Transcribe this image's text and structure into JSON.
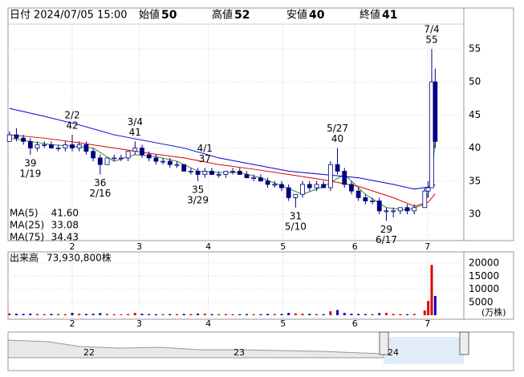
{
  "chart_data": {
    "type": "candlestick",
    "header": {
      "date_label": "日付",
      "date": "2024/07/05 15:00",
      "fields": [
        {
          "label": "始値",
          "value": 50,
          "color": "#000000"
        },
        {
          "label": "高値",
          "value": 52,
          "color": "#e00000"
        },
        {
          "label": "安値",
          "value": 40,
          "color": "#008000"
        },
        {
          "label": "終値",
          "value": 41,
          "color": "#000000"
        }
      ]
    },
    "x": [
      0,
      1,
      2,
      3,
      4,
      5,
      6,
      7,
      8,
      9,
      10,
      11,
      12,
      13,
      14,
      15,
      16,
      17,
      18,
      19,
      20,
      21,
      22,
      23,
      24,
      25,
      26,
      27,
      28,
      29,
      30,
      31,
      32,
      33,
      34,
      35,
      36,
      37,
      38,
      39,
      40,
      41,
      42,
      43,
      44,
      45,
      46,
      47,
      48,
      49,
      50,
      51,
      52,
      53,
      54,
      55,
      56,
      57,
      58,
      59.5,
      60,
      60.5,
      61
    ],
    "open": [
      41,
      42,
      41.5,
      41,
      40,
      40.5,
      40.5,
      40,
      40,
      40.5,
      40,
      40.5,
      39.5,
      38.5,
      37.5,
      38.5,
      38.5,
      38.5,
      39.5,
      40,
      39,
      38.5,
      38,
      38,
      37.5,
      37.5,
      36.5,
      36.5,
      36,
      36.5,
      36,
      36,
      36.5,
      36.5,
      36,
      35.5,
      35.5,
      35,
      34.5,
      34.5,
      34,
      32.5,
      33,
      34.5,
      34,
      34.5,
      34,
      37.5,
      36.5,
      34.5,
      33.5,
      32.5,
      32,
      32,
      30.5,
      30.5,
      30.5,
      31,
      30.5,
      31,
      33.5,
      34,
      50
    ],
    "high": [
      42.5,
      43,
      42,
      41.5,
      41,
      41,
      41,
      40.5,
      41,
      42,
      41,
      41,
      40,
      39,
      38.5,
      39,
      39,
      39.5,
      41,
      40.5,
      39.5,
      39,
      38.5,
      38.5,
      38,
      37.5,
      37,
      37,
      37,
      37,
      36.5,
      36.5,
      37,
      37,
      36.5,
      36,
      36,
      35.5,
      35,
      35,
      34.5,
      33,
      35,
      35,
      35,
      35,
      38,
      40,
      37,
      35,
      34,
      33,
      32.5,
      32.5,
      31,
      31,
      31,
      31.5,
      31.5,
      34,
      35,
      55,
      52
    ],
    "low": [
      41,
      41,
      40.5,
      39,
      39.5,
      40,
      40,
      39.5,
      39.5,
      39.5,
      39.5,
      39,
      38,
      36,
      37.5,
      38,
      38,
      38,
      39,
      38.5,
      38,
      37.5,
      37.5,
      37,
      37,
      36.5,
      36,
      35,
      35.5,
      36,
      35.5,
      35.5,
      36,
      36,
      35.5,
      35,
      35,
      34,
      34,
      33.5,
      32,
      31,
      32.5,
      33.5,
      33.5,
      34,
      33.5,
      36,
      34,
      33,
      32,
      31.5,
      31.5,
      30,
      29,
      29.5,
      30,
      30,
      30,
      31,
      32.5,
      34,
      40
    ],
    "close": [
      42,
      41.5,
      41,
      40,
      40.5,
      40.5,
      40,
      40,
      40.5,
      40,
      40.5,
      39.5,
      38.5,
      37.5,
      38.5,
      38.5,
      38.5,
      39.5,
      40,
      39,
      38.5,
      38,
      38,
      37.5,
      37.5,
      36.5,
      36.5,
      36,
      36.5,
      36,
      36,
      36.5,
      36.5,
      36,
      35.5,
      35.5,
      35,
      34.5,
      34.5,
      34,
      32.5,
      33,
      34.5,
      34,
      34.5,
      34,
      37.5,
      36.5,
      34.5,
      33.5,
      32.5,
      32,
      32,
      30.5,
      30.5,
      30.5,
      31,
      30.5,
      31,
      33.5,
      34,
      50,
      41
    ],
    "up_color": "#ffffff",
    "down_color": "#000080",
    "candle_outline": "#000080",
    "xlim": [
      -0.2,
      65.1
    ],
    "xticks": [
      {
        "value": 9,
        "label": "2"
      },
      {
        "value": 18.6,
        "label": "3"
      },
      {
        "value": 28.5,
        "label": "4"
      },
      {
        "value": 39.2,
        "label": "5"
      },
      {
        "value": 49.5,
        "label": "6"
      },
      {
        "value": 59.9,
        "label": "7"
      }
    ],
    "ylim": [
      26,
      58.5
    ],
    "yticks": [
      30,
      35,
      40,
      45,
      50,
      55
    ],
    "grid": true,
    "annotations": [
      {
        "x": 3,
        "date": "1/19",
        "price": 39,
        "kind": "low"
      },
      {
        "x": 9,
        "date": "2/2",
        "price": 42,
        "kind": "high"
      },
      {
        "x": 13,
        "date": "2/16",
        "price": 36,
        "kind": "low"
      },
      {
        "x": 18,
        "date": "3/4",
        "price": 41,
        "kind": "high"
      },
      {
        "x": 27,
        "date": "3/29",
        "price": 35,
        "kind": "low"
      },
      {
        "x": 28,
        "date": "4/1",
        "price": 37,
        "kind": "high"
      },
      {
        "x": 41,
        "date": "5/10",
        "price": 31,
        "kind": "low"
      },
      {
        "x": 47,
        "date": "5/27",
        "price": 40,
        "kind": "high"
      },
      {
        "x": 54,
        "date": "6/17",
        "price": 29,
        "kind": "low"
      },
      {
        "x": 60.5,
        "date": "7/4",
        "price": 55,
        "kind": "high"
      }
    ],
    "moving_averages": [
      {
        "name": "MA(5)",
        "color": "#2a8a2a",
        "last": 41.6,
        "last_label": "41.60",
        "x": [
          0,
          3,
          6,
          9,
          12,
          15,
          18,
          21,
          24,
          27,
          30,
          33,
          36,
          39,
          42,
          45,
          48,
          51,
          54,
          57,
          59.5,
          60.5,
          61
        ],
        "values": [
          41.5,
          41,
          40.5,
          40.3,
          40,
          38,
          39,
          38.7,
          38,
          36.5,
          36.3,
          36.3,
          35.5,
          34.3,
          33,
          34.2,
          36,
          33,
          31,
          30.6,
          31.5,
          35,
          41.6
        ]
      },
      {
        "name": "MA(25)",
        "color": "#e00000",
        "last": 33.08,
        "last_label": "33.08",
        "x": [
          0,
          5,
          10,
          15,
          20,
          25,
          30,
          35,
          40,
          45,
          50,
          55,
          58,
          60,
          61
        ],
        "values": [
          42,
          41.5,
          40.8,
          40,
          39.2,
          38.5,
          37.5,
          36.8,
          36,
          35.2,
          34.2,
          32.5,
          31.2,
          31.8,
          33.08
        ]
      },
      {
        "name": "MA(75)",
        "color": "#0000e0",
        "last": 34.43,
        "last_label": "34.43",
        "x": [
          0,
          5,
          10,
          15,
          20,
          25,
          30,
          35,
          40,
          45,
          50,
          55,
          58,
          60,
          61
        ],
        "values": [
          46,
          44.8,
          43.5,
          42,
          41,
          40,
          38.5,
          37.5,
          36.5,
          36,
          35.5,
          34.5,
          33.8,
          34.1,
          34.43
        ]
      }
    ],
    "volume": {
      "title": "出来高",
      "total_label": "73,930,800株",
      "unit": "(万株)",
      "values": [
        700,
        600,
        500,
        650,
        450,
        400,
        500,
        450,
        400,
        900,
        600,
        500,
        550,
        800,
        500,
        400,
        350,
        450,
        900,
        600,
        450,
        400,
        400,
        450,
        400,
        500,
        450,
        650,
        600,
        450,
        400,
        450,
        400,
        400,
        450,
        400,
        400,
        500,
        450,
        500,
        900,
        700,
        600,
        500,
        450,
        400,
        1500,
        2000,
        900,
        600,
        500,
        450,
        400,
        800,
        900,
        500,
        450,
        400,
        500,
        1800,
        5500,
        19300,
        7393
      ],
      "up_color": "#e00000",
      "down_color": "#0000c0",
      "ylim": [
        0,
        24000
      ],
      "yticks": [
        5000,
        10000,
        15000,
        20000
      ]
    },
    "navigator": {
      "labels": [
        "22",
        "23",
        "24"
      ]
    }
  }
}
